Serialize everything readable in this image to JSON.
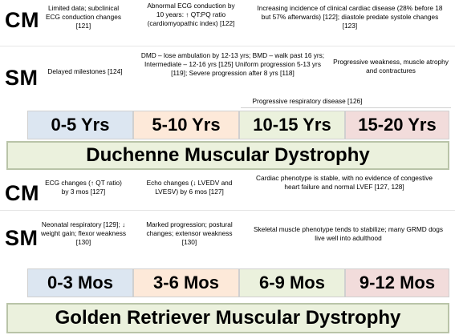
{
  "dmd": {
    "cm_label": "CM",
    "sm_label": "SM",
    "cm_notes": [
      "Limited data; subclinical ECG conduction changes [121]",
      "Abnormal ECG conduction by 10 years: ↑ QT:PQ ratio (cardiomyopathic index) [122]",
      "Increasing incidence of clinical cardiac disease (28% before 18 but 57% afterwards) [122]; diastole predate systole changes [123]"
    ],
    "sm_notes": [
      "Delayed milestones [124]",
      "DMD – lose ambulation by 12-13 yrs; BMD – walk past 16 yrs; Intermediate – 12-16 yrs [125] Uniform progression 5-13 yrs [119]; Severe progression after 8 yrs [118]",
      "Progressive weakness, muscle atrophy and contractures",
      "Progressive respiratory disease [126]"
    ],
    "ages": [
      "0-5 Yrs",
      "5-10 Yrs",
      "10-15 Yrs",
      "15-20 Yrs"
    ],
    "title": "Duchenne Muscular Dystrophy"
  },
  "grmd": {
    "cm_label": "CM",
    "sm_label": "SM",
    "cm_notes": [
      "ECG changes (↑ QT ratio) by 3 mos [127]",
      "Echo changes (↓ LVEDV and LVESV) by 6 mos [127]",
      "Cardiac phenotype is stable, with no evidence of congestive heart failure and normal LVEF [127, 128]"
    ],
    "sm_notes": [
      "Neonatal respiratory [129]; ↓ weight gain; flexor weakness [130]",
      "Marked progression; postural changes; extensor weakness [130]",
      "Skeletal muscle phenotype tends to stabilize; many GRMD dogs live well into adulthood"
    ],
    "ages": [
      "0-3 Mos",
      "3-6 Mos",
      "6-9 Mos",
      "9-12 Mos"
    ],
    "title": "Golden Retriever Muscular Dystrophy"
  },
  "colors": {
    "age_1": "#dce6f1",
    "age_2": "#fde9d9",
    "age_3": "#ebf1dd",
    "age_4": "#f2dcdb",
    "title_fill": "#ebf1dd",
    "title_border": "#b9c4a8"
  }
}
